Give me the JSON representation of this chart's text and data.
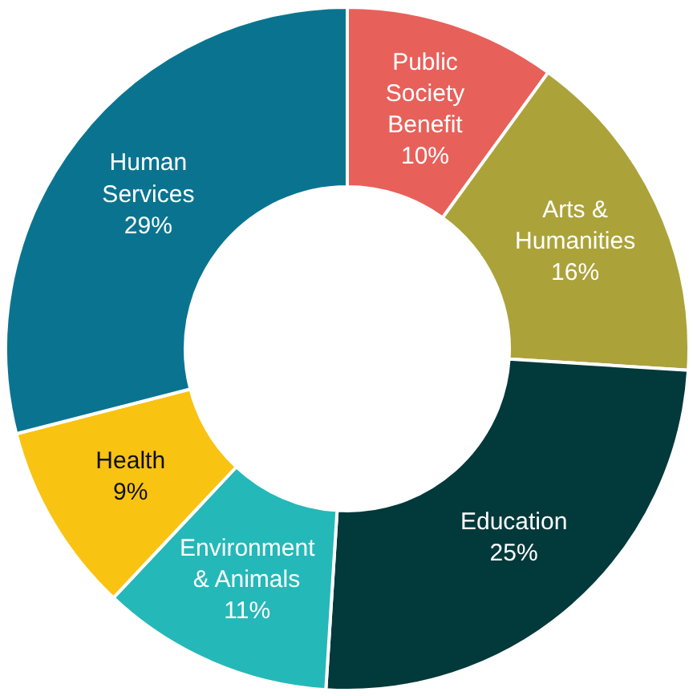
{
  "chart_data": {
    "type": "donut",
    "categories": [
      "Public Society Benefit",
      "Arts & Humanities",
      "Education",
      "Environment & Animals",
      "Health",
      "Human Services"
    ],
    "values": [
      10,
      16,
      25,
      11,
      9,
      29
    ],
    "colors": [
      "#e8605a",
      "#aba33a",
      "#02393b",
      "#25b8b8",
      "#f9c312",
      "#0a7490"
    ],
    "value_labels": [
      "10%",
      "16%",
      "25%",
      "11%",
      "9%",
      "29%"
    ]
  }
}
